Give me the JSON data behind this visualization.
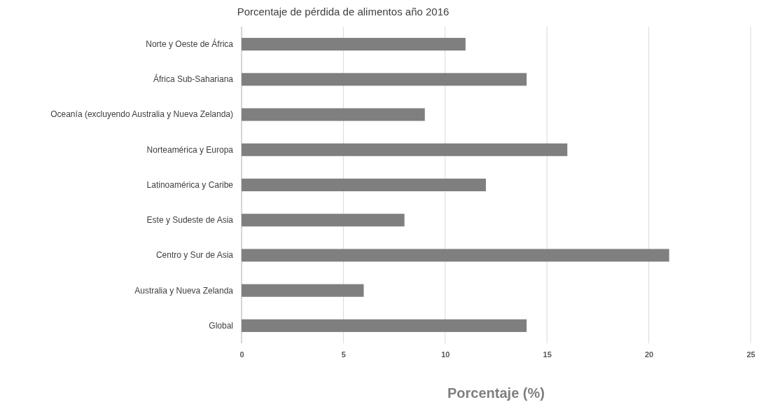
{
  "chart_data": {
    "type": "bar",
    "orientation": "horizontal",
    "title": "Porcentaje de pérdida de alimentos año 2016",
    "xlabel": "Porcentaje (%)",
    "categories": [
      "Norte y Oeste de África",
      "África Sub-Sahariana",
      "Oceanía (excluyendo Australia y Nueva Zelanda)",
      "Norteamérica y Europa",
      "Latinoamérica y Caribe",
      "Este y Sudeste de Asia",
      "Centro y Sur de Asia",
      "Australia y Nueva Zelanda",
      "Global"
    ],
    "values": [
      11,
      14,
      9,
      16,
      12,
      8,
      21,
      6,
      14
    ],
    "color": "#7f7f7f",
    "xlim": [
      0,
      25
    ],
    "xticks": [
      0,
      5,
      10,
      15,
      20,
      25
    ],
    "grid": "x"
  }
}
